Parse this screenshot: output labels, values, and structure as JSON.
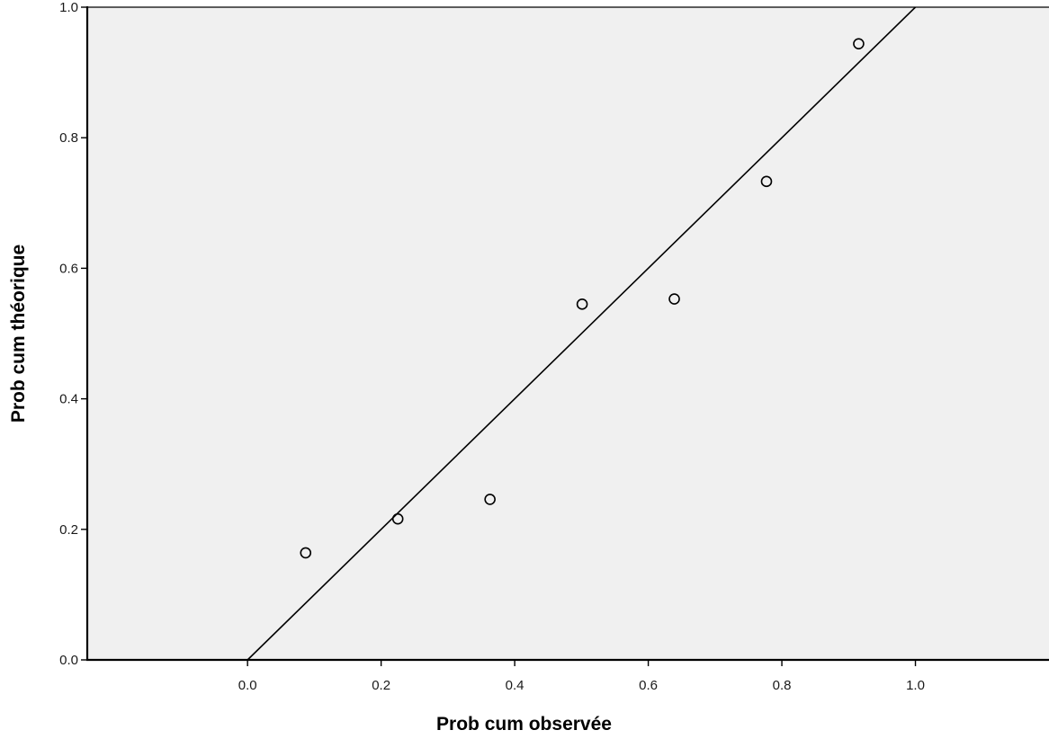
{
  "chart_data": {
    "type": "scatter",
    "title": "",
    "xlabel": "Prob cum observée",
    "ylabel": "Prob cum théorique",
    "xlim": [
      -0.24,
      1.2
    ],
    "ylim": [
      0.0,
      1.0
    ],
    "x_ticks": [
      0.0,
      0.2,
      0.4,
      0.6,
      0.8,
      1.0
    ],
    "y_ticks": [
      0.0,
      0.2,
      0.4,
      0.6,
      0.8,
      1.0
    ],
    "x_tick_labels": [
      "0.0",
      "0.2",
      "0.4",
      "0.6",
      "0.8",
      "1.0"
    ],
    "y_tick_labels": [
      "0.0",
      "0.2",
      "0.4",
      "0.6",
      "0.8",
      "1.0"
    ],
    "grid": false,
    "reference_line": {
      "from": [
        0.0,
        0.0
      ],
      "to": [
        1.0,
        1.0
      ]
    },
    "series": [
      {
        "x": [
          0.087,
          0.225,
          0.363,
          0.501,
          0.639,
          0.777,
          0.915
        ],
        "y": [
          0.164,
          0.216,
          0.246,
          0.545,
          0.553,
          0.733,
          0.944
        ]
      }
    ],
    "colors": {
      "plot_background": "#f0f0f0",
      "axis": "#000000",
      "marker_stroke": "#000000",
      "line": "#000000"
    }
  }
}
